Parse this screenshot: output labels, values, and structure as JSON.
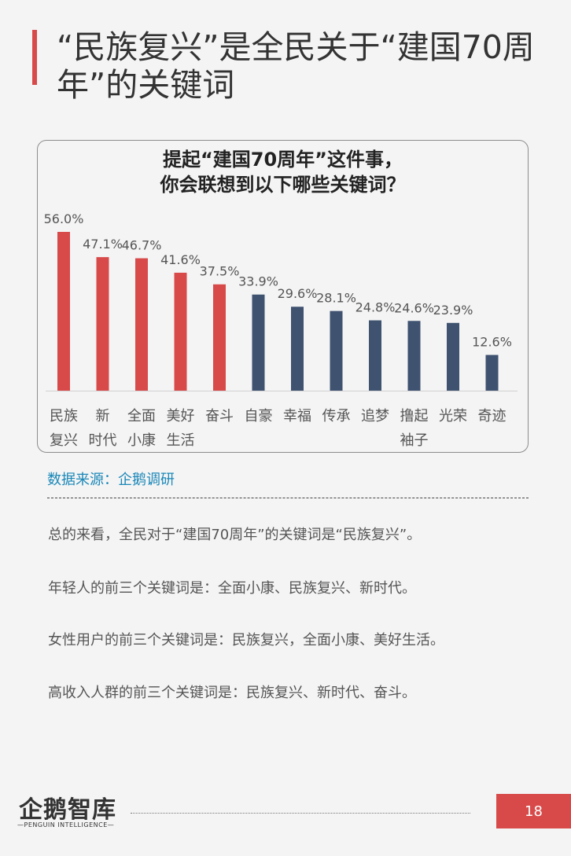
{
  "page": {
    "title": "“民族复兴”是全民关于“建国70周年”的关键词",
    "title_lines": [
      "“民族复兴”是全民关于“建国70周",
      "年”的关键词"
    ],
    "source": "数据来源：企鹅调研",
    "paragraphs": [
      "总的来看，全民对于“建国70周年”的关键词是“民族复兴”。",
      "年轻人的前三个关键词是：全面小康、民族复兴、新时代。",
      "女性用户的前三个关键词是：民族复兴，全面小康、美好生活。",
      "高收入人群的前三个关键词是：民族复兴、新时代、奋斗。"
    ],
    "logo": {
      "main": "企鹅智库",
      "sub": "—PENGUIN INTELLIGENCE—"
    },
    "page_number": "18"
  },
  "colors": {
    "highlight": "#d84a4a",
    "normal": "#3f5270"
  },
  "chart_data": {
    "type": "bar",
    "title": "提起“建国70周年”这件事，你会联想到以下哪些关键词？",
    "title_lines": [
      "提起“建国70周年”这件事，",
      "你会联想到以下哪些关键词？"
    ],
    "categories": [
      "民族复兴",
      "新时代",
      "全面小康",
      "美好生活",
      "奋斗",
      "自豪",
      "幸福",
      "传承",
      "追梦",
      "撸起袖子",
      "光荣",
      "奇迹"
    ],
    "category_lines": [
      [
        "民族",
        "复兴"
      ],
      [
        "新",
        "时代"
      ],
      [
        "全面",
        "小康"
      ],
      [
        "美好",
        "生活"
      ],
      [
        "奋斗"
      ],
      [
        "自豪"
      ],
      [
        "幸福"
      ],
      [
        "传承"
      ],
      [
        "追梦"
      ],
      [
        "撸起",
        "袖子"
      ],
      [
        "光荣"
      ],
      [
        "奇迹"
      ]
    ],
    "values": [
      56.0,
      47.1,
      46.7,
      41.6,
      37.5,
      33.9,
      29.6,
      28.1,
      24.8,
      24.6,
      23.9,
      12.6
    ],
    "labels": [
      "56.0%",
      "47.1%",
      "46.7%",
      "41.6%",
      "37.5%",
      "33.9%",
      "29.6%",
      "28.1%",
      "24.8%",
      "24.6%",
      "23.9%",
      "12.6%"
    ],
    "highlighted": [
      true,
      true,
      true,
      true,
      true,
      false,
      false,
      false,
      false,
      false,
      false,
      false
    ],
    "unit": "%",
    "ylim": [
      0,
      56
    ],
    "grid": false,
    "legend": "none"
  }
}
